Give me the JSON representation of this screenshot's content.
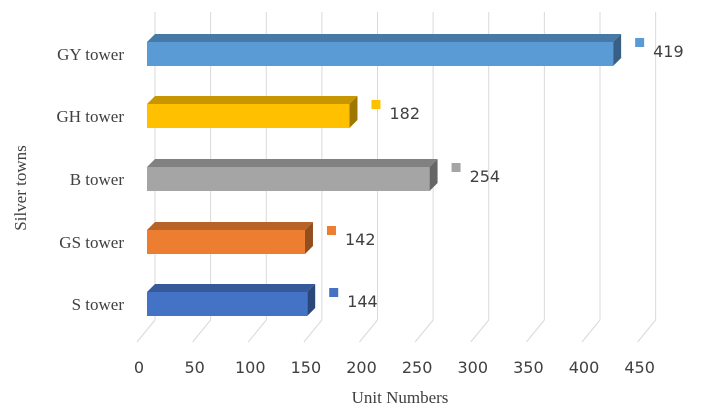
{
  "chart_data": {
    "type": "bar",
    "orientation": "horizontal",
    "style": "3d",
    "categories": [
      "S tower",
      "GS tower",
      "B tower",
      "GH tower",
      "GY tower"
    ],
    "values": [
      144,
      142,
      254,
      182,
      419
    ],
    "colors": [
      "#4472c4",
      "#ed7d31",
      "#a5a5a5",
      "#ffc000",
      "#5b9bd5"
    ],
    "data_labels": [
      "144",
      "142",
      "254",
      "182",
      "419"
    ],
    "xlabel": "Unit Numbers",
    "ylabel": "Silver towns",
    "xlim": [
      0,
      450
    ],
    "xticks": [
      "0",
      "50",
      "100",
      "150",
      "200",
      "250",
      "300",
      "350",
      "400",
      "450"
    ],
    "grid": true,
    "legend": "none",
    "gridline_color": "#d9d9d9",
    "text_color": "#404040"
  }
}
